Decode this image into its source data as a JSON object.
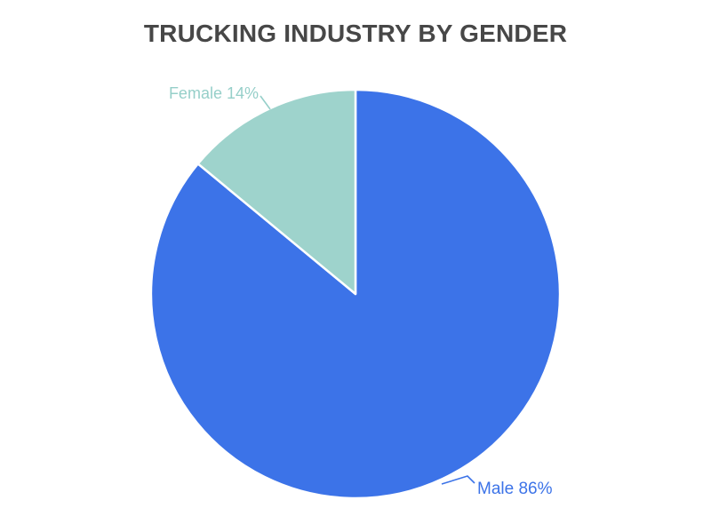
{
  "page": {
    "background": "#ffffff"
  },
  "chart_data": {
    "type": "pie",
    "title": "TRUCKING INDUSTRY BY GENDER",
    "title_color": "#474747",
    "categories": [
      "Male",
      "Female"
    ],
    "values": [
      86,
      14
    ],
    "unit": "%",
    "series": [
      {
        "name": "Male",
        "value": 86,
        "label": "Male 86%",
        "color": "#3C73E8",
        "label_color": "#3C73E8"
      },
      {
        "name": "Female",
        "value": 14,
        "label": "Female 14%",
        "color": "#9ED3CC",
        "label_color": "#96CFC9"
      }
    ],
    "start_at": "12-oclock",
    "direction": "clockwise",
    "labels_position": "outside",
    "slice_border_color": "#ffffff",
    "legend": "none",
    "background": "#ffffff"
  }
}
